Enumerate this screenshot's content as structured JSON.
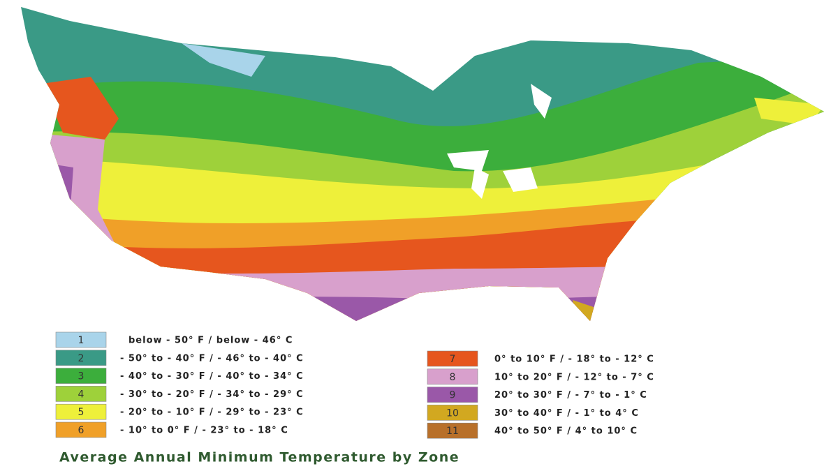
{
  "title": "Average Annual Minimum Temperature by Zone",
  "zones": [
    {
      "label": "1",
      "range": "below - 50° F / below - 46° C",
      "color": "#a9d4ea"
    },
    {
      "label": "2",
      "range": "- 50° to - 40° F / - 46° to - 40° C",
      "color": "#3a9a86"
    },
    {
      "label": "3",
      "range": "- 40° to - 30° F / - 40° to - 34° C",
      "color": "#3cae3c"
    },
    {
      "label": "4",
      "range": "- 30° to - 20° F / - 34° to - 29° C",
      "color": "#9ed13a"
    },
    {
      "label": "5",
      "range": "- 20° to - 10° F / - 29° to - 23° C",
      "color": "#eef03a"
    },
    {
      "label": "6",
      "range": "- 10° to 0° F / - 23° to - 18° C",
      "color": "#f0a028"
    },
    {
      "label": "7",
      "range": "0° to 10° F / - 18° to - 12° C",
      "color": "#e6561e"
    },
    {
      "label": "8",
      "range": "10° to 20° F / - 12° to - 7° C",
      "color": "#d8a0cc"
    },
    {
      "label": "9",
      "range": "20° to 30° F / - 7° to - 1° C",
      "color": "#9a58a8"
    },
    {
      "label": "10",
      "range": "30° to 40° F / - 1° to 4° C",
      "color": "#d2a820"
    },
    {
      "label": "11",
      "range": "40° to 50° F / 4° to 10° C",
      "color": "#b8702a"
    }
  ]
}
